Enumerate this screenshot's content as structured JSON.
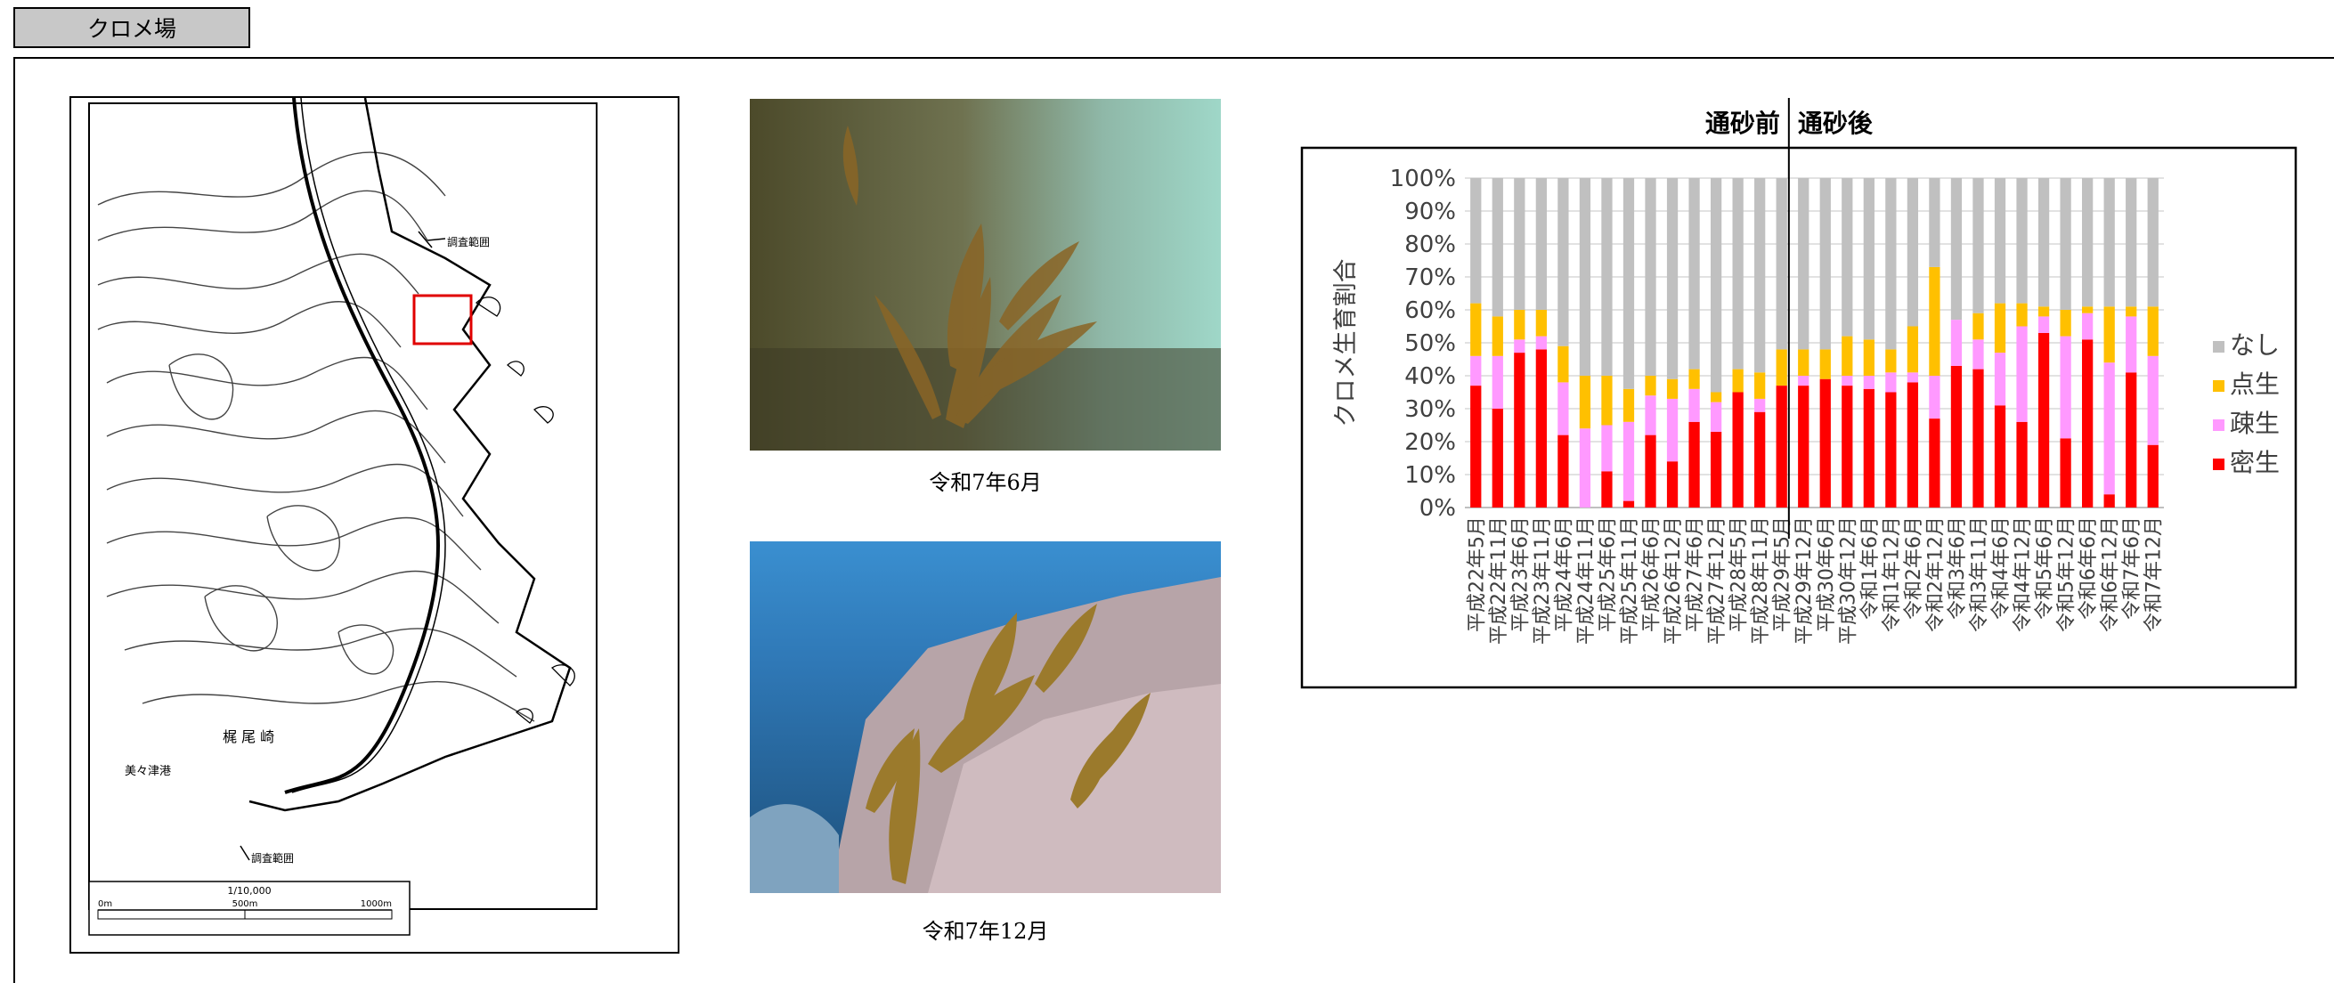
{
  "section": {
    "title": "クロメ場"
  },
  "photos": [
    {
      "caption": "令和7年6月"
    },
    {
      "caption": "令和7年12月"
    }
  ],
  "map": {
    "survey_label_top": "調査範囲",
    "survey_label_bottom": "調査範囲",
    "cape_label": "梶 尾 崎",
    "harbor_label": "美々津港",
    "scale_ratio": "1/10,000",
    "scale_ticks": [
      "0m",
      "500m",
      "1000m"
    ]
  },
  "chart_data": {
    "type": "bar",
    "stacked": true,
    "ylabel": "クロメ生育割合",
    "ylim": [
      0,
      100
    ],
    "yticks": [
      "0%",
      "10%",
      "20%",
      "30%",
      "40%",
      "50%",
      "60%",
      "70%",
      "80%",
      "90%",
      "100%"
    ],
    "legend_position": "right",
    "annotations": {
      "before": "通砂前",
      "after": "通砂後"
    },
    "divider_after_category": 15,
    "categories": [
      "平成22年5月",
      "平成22年11月",
      "平成23年6月",
      "平成23年11月",
      "平成24年6月",
      "平成24年11月",
      "平成25年6月",
      "平成25年11月",
      "平成26年6月",
      "平成26年12月",
      "平成27年6月",
      "平成27年12月",
      "平成28年5月",
      "平成28年11月",
      "平成29年5月",
      "平成29年12月",
      "平成30年6月",
      "平成30年12月",
      "令和1年6月",
      "令和1年12月",
      "令和2年6月",
      "令和2年12月",
      "令和3年6月",
      "令和3年11月",
      "令和4年6月",
      "令和4年12月",
      "令和5年6月",
      "令和5年12月",
      "令和6年6月",
      "令和6年12月",
      "令和7年6月",
      "令和7年12月"
    ],
    "series": [
      {
        "name": "密生",
        "color": "#ff0000",
        "values": [
          37,
          30,
          47,
          48,
          22,
          0,
          11,
          2,
          22,
          14,
          26,
          23,
          35,
          29,
          37,
          37,
          39,
          37,
          36,
          35,
          38,
          27,
          43,
          42,
          31,
          26,
          53,
          21,
          51,
          4,
          41,
          19
        ]
      },
      {
        "name": "疎生",
        "color": "#ff99ff",
        "values": [
          9,
          16,
          4,
          4,
          16,
          24,
          14,
          24,
          12,
          19,
          10,
          9,
          0,
          4,
          0,
          3,
          0,
          3,
          4,
          6,
          3,
          13,
          14,
          9,
          16,
          29,
          5,
          31,
          8,
          40,
          17,
          27
        ]
      },
      {
        "name": "点生",
        "color": "#ffc000",
        "values": [
          16,
          12,
          9,
          8,
          11,
          16,
          15,
          10,
          6,
          6,
          6,
          3,
          7,
          8,
          11,
          8,
          9,
          12,
          11,
          7,
          14,
          33,
          0,
          8,
          15,
          7,
          3,
          8,
          2,
          17,
          3,
          15
        ]
      },
      {
        "name": "なし",
        "color": "#c0c0c0",
        "values": [
          38,
          42,
          40,
          40,
          51,
          60,
          60,
          64,
          60,
          61,
          58,
          65,
          58,
          59,
          52,
          52,
          52,
          48,
          49,
          52,
          45,
          27,
          43,
          41,
          38,
          38,
          39,
          40,
          39,
          39,
          39,
          39
        ]
      }
    ]
  }
}
